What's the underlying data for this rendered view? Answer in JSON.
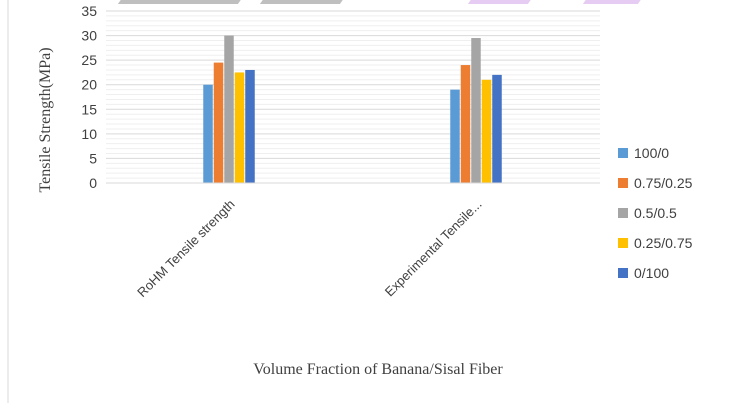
{
  "colors": {
    "series": [
      "#5B9BD5",
      "#ED7D31",
      "#A5A5A5",
      "#FFC000",
      "#4472C4"
    ],
    "grid": "#E6E6E6",
    "axis": "#D9D9D9",
    "text": "#404040",
    "watermark_gray": "#BFBFBF",
    "watermark_purple": "#E6CCF2"
  },
  "chart_data": {
    "type": "bar",
    "title": "",
    "xlabel": "Volume Fraction of Banana/Sisal Fiber",
    "ylabel": "Tensile  Strength(MPa)",
    "ylim": [
      0,
      35
    ],
    "yticks": [
      "0",
      "5",
      "10",
      "15",
      "20",
      "25",
      "30",
      "35"
    ],
    "categories": [
      "RoHM Tensile strength",
      "Experimental Tensile..."
    ],
    "series": [
      {
        "name": "100/0",
        "values": [
          20,
          19
        ]
      },
      {
        "name": "0.75/0.25",
        "values": [
          24.5,
          24
        ]
      },
      {
        "name": "0.5/0.5",
        "values": [
          30,
          29.5
        ]
      },
      {
        "name": "0.25/0.75",
        "values": [
          22.5,
          21
        ]
      },
      {
        "name": "0/100",
        "values": [
          23,
          22
        ]
      }
    ],
    "grid": true,
    "legend": "right"
  }
}
